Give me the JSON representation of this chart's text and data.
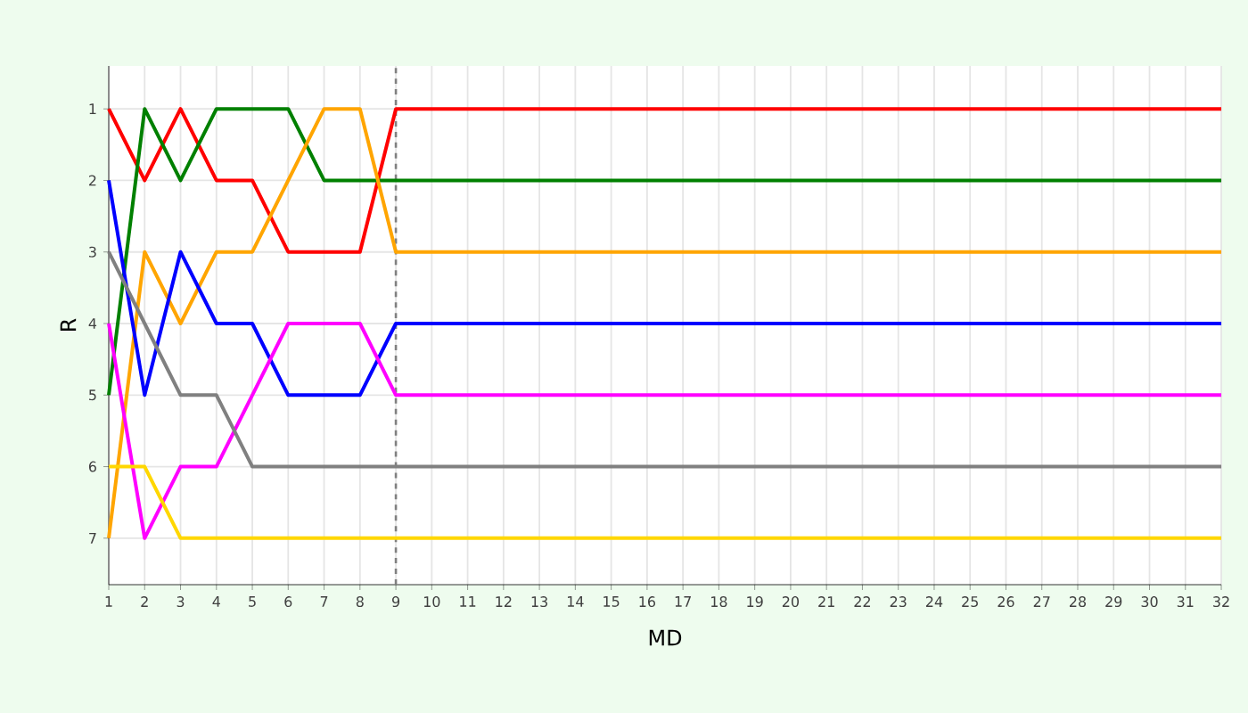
{
  "chart_data": {
    "type": "line",
    "xlabel": "MD",
    "ylabel": "R",
    "x": [
      1,
      2,
      3,
      4,
      5,
      6,
      7,
      8,
      9,
      10,
      11,
      12,
      13,
      14,
      15,
      16,
      17,
      18,
      19,
      20,
      21,
      22,
      23,
      24,
      25,
      26,
      27,
      28,
      29,
      30,
      31,
      32
    ],
    "xlim": [
      1,
      32
    ],
    "xticks": [
      1,
      2,
      3,
      4,
      5,
      6,
      7,
      8,
      9,
      10,
      11,
      12,
      13,
      14,
      15,
      16,
      17,
      18,
      19,
      20,
      21,
      22,
      23,
      24,
      25,
      26,
      27,
      28,
      29,
      30,
      31,
      32
    ],
    "ylim": [
      7.65,
      0.4
    ],
    "yticks": [
      1,
      2,
      3,
      4,
      5,
      6,
      7
    ],
    "grid": true,
    "marker": "none",
    "line_style": "solid",
    "ref_lines": [
      {
        "axis": "x",
        "value": 9,
        "color": "#808080",
        "line_style": "dashed"
      }
    ],
    "series": [
      {
        "color": "#ff0000",
        "values": [
          1,
          2,
          1,
          2,
          2,
          3,
          3,
          3,
          1,
          1,
          1,
          1,
          1,
          1,
          1,
          1,
          1,
          1,
          1,
          1,
          1,
          1,
          1,
          1,
          1,
          1,
          1,
          1,
          1,
          1,
          1,
          1
        ]
      },
      {
        "color": "#008000",
        "values": [
          5,
          1,
          2,
          1,
          1,
          1,
          2,
          2,
          2,
          2,
          2,
          2,
          2,
          2,
          2,
          2,
          2,
          2,
          2,
          2,
          2,
          2,
          2,
          2,
          2,
          2,
          2,
          2,
          2,
          2,
          2,
          2
        ]
      },
      {
        "color": "#ffa500",
        "values": [
          7,
          3,
          4,
          3,
          3,
          2,
          1,
          1,
          3,
          3,
          3,
          3,
          3,
          3,
          3,
          3,
          3,
          3,
          3,
          3,
          3,
          3,
          3,
          3,
          3,
          3,
          3,
          3,
          3,
          3,
          3,
          3
        ]
      },
      {
        "color": "#0000ff",
        "values": [
          2,
          5,
          3,
          4,
          4,
          5,
          5,
          5,
          4,
          4,
          4,
          4,
          4,
          4,
          4,
          4,
          4,
          4,
          4,
          4,
          4,
          4,
          4,
          4,
          4,
          4,
          4,
          4,
          4,
          4,
          4,
          4
        ]
      },
      {
        "color": "#ff00ff",
        "values": [
          4,
          7,
          6,
          6,
          5,
          4,
          4,
          4,
          5,
          5,
          5,
          5,
          5,
          5,
          5,
          5,
          5,
          5,
          5,
          5,
          5,
          5,
          5,
          5,
          5,
          5,
          5,
          5,
          5,
          5,
          5,
          5
        ]
      },
      {
        "color": "#808080",
        "values": [
          3,
          4,
          5,
          5,
          6,
          6,
          6,
          6,
          6,
          6,
          6,
          6,
          6,
          6,
          6,
          6,
          6,
          6,
          6,
          6,
          6,
          6,
          6,
          6,
          6,
          6,
          6,
          6,
          6,
          6,
          6,
          6
        ]
      },
      {
        "color": "#ffd700",
        "values": [
          6,
          6,
          7,
          7,
          7,
          7,
          7,
          7,
          7,
          7,
          7,
          7,
          7,
          7,
          7,
          7,
          7,
          7,
          7,
          7,
          7,
          7,
          7,
          7,
          7,
          7,
          7,
          7,
          7,
          7,
          7,
          7
        ]
      }
    ]
  }
}
